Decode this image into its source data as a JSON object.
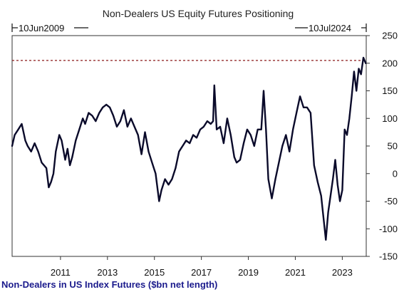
{
  "chart_data": {
    "type": "line",
    "title": "Non-Dealers US Equity Futures Positioning",
    "range_start_label": "10Jun2009",
    "range_end_label": "10Jul2024",
    "footer_label": "Non-Dealers in US Index Futures ($bn net length)",
    "x_tick_labels": [
      "2011",
      "2013",
      "2015",
      "2017",
      "2019",
      "2021",
      "2023"
    ],
    "y_tick_labels": [
      "250",
      "200",
      "150",
      "100",
      "50",
      "0",
      "-50",
      "-100",
      "-150"
    ],
    "ylim": [
      -150,
      250
    ],
    "xlim": [
      2009.44,
      2024.52
    ],
    "reference_line": {
      "y": 205,
      "style": "dotted",
      "color": "#8b1a1a"
    },
    "line_color": "#0a0a2a",
    "grid": false,
    "series": [
      {
        "x": [
          2009.44,
          2009.55,
          2009.7,
          2009.85,
          2010.0,
          2010.1,
          2010.25,
          2010.4,
          2010.55,
          2010.7,
          2010.8,
          2010.9,
          2011.0,
          2011.1,
          2011.2,
          2011.3,
          2011.45,
          2011.55,
          2011.7,
          2011.8,
          2011.9,
          2012.0,
          2012.15,
          2012.3,
          2012.45,
          2012.55,
          2012.7,
          2012.85,
          2013.0,
          2013.15,
          2013.3,
          2013.45,
          2013.6,
          2013.75,
          2013.9,
          2014.05,
          2014.2,
          2014.35,
          2014.5,
          2014.65,
          2014.8,
          2014.95,
          2015.1,
          2015.25,
          2015.4,
          2015.55,
          2015.7,
          2015.8,
          2015.95,
          2016.1,
          2016.25,
          2016.4,
          2016.55,
          2016.7,
          2016.85,
          2017.0,
          2017.15,
          2017.3,
          2017.45,
          2017.6,
          2017.75,
          2017.9,
          2018.0,
          2018.05,
          2018.15,
          2018.3,
          2018.45,
          2018.6,
          2018.75,
          2018.9,
          2019.0,
          2019.15,
          2019.3,
          2019.45,
          2019.6,
          2019.75,
          2019.9,
          2020.05,
          2020.15,
          2020.25,
          2020.35,
          2020.5,
          2020.65,
          2020.8,
          2020.95,
          2021.1,
          2021.25,
          2021.4,
          2021.55,
          2021.7,
          2021.85,
          2022.0,
          2022.15,
          2022.3,
          2022.45,
          2022.6,
          2022.7,
          2022.8,
          2022.9,
          2023.0,
          2023.1,
          2023.2,
          2023.3,
          2023.4,
          2023.5,
          2023.6,
          2023.7,
          2023.8,
          2023.9,
          2024.0,
          2024.1,
          2024.2,
          2024.3,
          2024.4,
          2024.5
        ],
        "values": [
          50,
          70,
          80,
          90,
          60,
          50,
          40,
          55,
          40,
          20,
          15,
          10,
          -25,
          -15,
          0,
          40,
          70,
          60,
          25,
          45,
          15,
          30,
          60,
          80,
          100,
          90,
          110,
          105,
          95,
          110,
          120,
          125,
          120,
          105,
          85,
          95,
          115,
          85,
          100,
          85,
          70,
          35,
          75,
          40,
          20,
          0,
          -50,
          -30,
          -10,
          -20,
          -10,
          10,
          40,
          50,
          60,
          55,
          70,
          65,
          80,
          85,
          95,
          90,
          95,
          160,
          80,
          85,
          55,
          100,
          70,
          30,
          20,
          25,
          55,
          80,
          70,
          50,
          80,
          80,
          150,
          80,
          -10,
          -45,
          -10,
          20,
          50,
          70,
          40,
          80,
          110,
          140,
          120,
          120,
          110,
          15,
          -15,
          -40,
          -80,
          -120,
          -70,
          -40,
          -10,
          25,
          -20,
          -50,
          -30,
          80,
          70,
          100,
          140,
          185,
          150,
          190,
          180,
          210,
          200
        ]
      }
    ]
  }
}
